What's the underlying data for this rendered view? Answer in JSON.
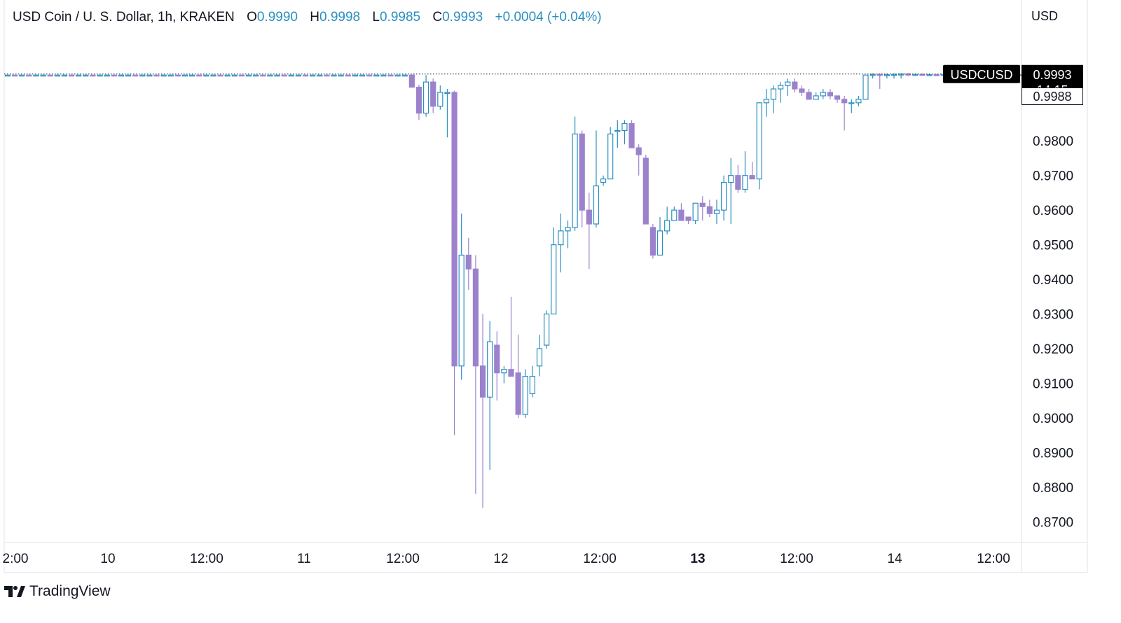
{
  "header": {
    "symbol_title": "USD Coin / U. S. Dollar, 1h, KRAKEN",
    "open_label": "O",
    "open_value": "0.9990",
    "high_label": "H",
    "high_value": "0.9998",
    "low_label": "L",
    "low_value": "0.9985",
    "close_label": "C",
    "close_value": "0.9993",
    "change": "+0.0004 (+0.04%)"
  },
  "price_axis": {
    "currency": "USD",
    "symbol_badge": "USDCUSD",
    "last_price": "0.9993",
    "countdown": "14:15",
    "marker_price": "0.9988"
  },
  "brand": {
    "name": "TradingView"
  },
  "colors": {
    "up": "#2a8fc0",
    "down": "#9c82cc",
    "axis_text": "#131722",
    "grid": "#f3f3f3"
  },
  "chart_data": {
    "type": "candlestick",
    "interval": "1h",
    "ylim": [
      0.863,
      1.013
    ],
    "y_ticks": [
      "0.9800",
      "0.9700",
      "0.9600",
      "0.9500",
      "0.9400",
      "0.9300",
      "0.9200",
      "0.9100",
      "0.9000",
      "0.8900",
      "0.8800",
      "0.8700"
    ],
    "x_ticks": [
      {
        "label": "2:00",
        "bold": false
      },
      {
        "label": "10",
        "bold": false
      },
      {
        "label": "12:00",
        "bold": false
      },
      {
        "label": "11",
        "bold": false
      },
      {
        "label": "12:00",
        "bold": false
      },
      {
        "label": "12",
        "bold": false
      },
      {
        "label": "12:00",
        "bold": false
      },
      {
        "label": "13",
        "bold": true
      },
      {
        "label": "12:00",
        "bold": false
      },
      {
        "label": "14",
        "bold": false
      },
      {
        "label": "12:00",
        "bold": false
      }
    ],
    "candles": [
      [
        0.9989,
        0.999,
        0.9988,
        0.999
      ],
      [
        0.999,
        0.9991,
        0.9988,
        0.9989
      ],
      [
        0.9989,
        0.999,
        0.9988,
        0.999
      ],
      [
        0.999,
        0.9991,
        0.9989,
        0.9989
      ],
      [
        0.9989,
        0.999,
        0.9988,
        0.999
      ],
      [
        0.999,
        0.9991,
        0.9989,
        0.999
      ],
      [
        0.999,
        0.9991,
        0.9989,
        0.9989
      ],
      [
        0.9989,
        0.999,
        0.9988,
        0.999
      ],
      [
        0.999,
        0.9991,
        0.9989,
        0.999
      ],
      [
        0.999,
        0.9991,
        0.9989,
        0.9989
      ],
      [
        0.9989,
        0.999,
        0.9988,
        0.999
      ],
      [
        0.999,
        0.9991,
        0.9989,
        0.999
      ],
      [
        0.999,
        0.9991,
        0.9989,
        0.9989
      ],
      [
        0.9989,
        0.999,
        0.9988,
        0.999
      ],
      [
        0.999,
        0.9991,
        0.9989,
        0.999
      ],
      [
        0.999,
        0.9991,
        0.9989,
        0.9989
      ],
      [
        0.9989,
        0.999,
        0.9988,
        0.999
      ],
      [
        0.999,
        0.9991,
        0.9989,
        0.999
      ],
      [
        0.999,
        0.9991,
        0.9989,
        0.9989
      ],
      [
        0.9989,
        0.999,
        0.9988,
        0.999
      ],
      [
        0.999,
        0.9991,
        0.9989,
        0.999
      ],
      [
        0.999,
        0.9991,
        0.9989,
        0.9989
      ],
      [
        0.9989,
        0.999,
        0.9988,
        0.999
      ],
      [
        0.999,
        0.9991,
        0.9989,
        0.999
      ],
      [
        0.999,
        0.9991,
        0.9989,
        0.9989
      ],
      [
        0.9989,
        0.999,
        0.9988,
        0.999
      ],
      [
        0.999,
        0.9991,
        0.9989,
        0.999
      ],
      [
        0.999,
        0.9991,
        0.9989,
        0.9989
      ],
      [
        0.9989,
        0.999,
        0.9988,
        0.999
      ],
      [
        0.999,
        0.9991,
        0.9989,
        0.999
      ],
      [
        0.999,
        0.9991,
        0.9989,
        0.9989
      ],
      [
        0.9989,
        0.999,
        0.9988,
        0.999
      ],
      [
        0.999,
        0.9991,
        0.9989,
        0.999
      ],
      [
        0.999,
        0.9991,
        0.9989,
        0.9989
      ],
      [
        0.9989,
        0.999,
        0.9988,
        0.999
      ],
      [
        0.999,
        0.9991,
        0.9989,
        0.999
      ],
      [
        0.999,
        0.9991,
        0.9989,
        0.9989
      ],
      [
        0.9989,
        0.999,
        0.9988,
        0.999
      ],
      [
        0.999,
        0.9991,
        0.9989,
        0.999
      ],
      [
        0.999,
        0.9991,
        0.9989,
        0.9989
      ],
      [
        0.9989,
        0.999,
        0.9988,
        0.999
      ],
      [
        0.999,
        0.9991,
        0.9989,
        0.999
      ],
      [
        0.999,
        0.9991,
        0.9989,
        0.9989
      ],
      [
        0.9989,
        0.999,
        0.9988,
        0.999
      ],
      [
        0.999,
        0.9991,
        0.9989,
        0.999
      ],
      [
        0.999,
        0.9991,
        0.9989,
        0.9989
      ],
      [
        0.9989,
        0.999,
        0.9988,
        0.999
      ],
      [
        0.999,
        0.9991,
        0.9989,
        0.999
      ],
      [
        0.999,
        0.9991,
        0.9989,
        0.9989
      ],
      [
        0.9989,
        0.999,
        0.9988,
        0.999
      ],
      [
        0.999,
        0.9991,
        0.9989,
        0.999
      ],
      [
        0.999,
        0.9991,
        0.9989,
        0.9989
      ],
      [
        0.9989,
        0.999,
        0.9988,
        0.999
      ],
      [
        0.999,
        0.9991,
        0.9989,
        0.999
      ],
      [
        0.999,
        0.9991,
        0.9989,
        0.9989
      ],
      [
        0.9989,
        0.999,
        0.9988,
        0.999
      ],
      [
        0.999,
        0.9991,
        0.9989,
        0.999
      ],
      [
        0.999,
        0.9992,
        0.9955,
        0.9955
      ],
      [
        0.9955,
        0.9962,
        0.986,
        0.988
      ],
      [
        0.988,
        0.999,
        0.987,
        0.997
      ],
      [
        0.997,
        0.998,
        0.988,
        0.99
      ],
      [
        0.99,
        0.996,
        0.989,
        0.994
      ],
      [
        0.994,
        0.995,
        0.981,
        0.994
      ],
      [
        0.994,
        0.9945,
        0.895,
        0.915
      ],
      [
        0.915,
        0.959,
        0.911,
        0.947
      ],
      [
        0.947,
        0.952,
        0.937,
        0.943
      ],
      [
        0.943,
        0.947,
        0.878,
        0.915
      ],
      [
        0.915,
        0.93,
        0.874,
        0.906
      ],
      [
        0.906,
        0.928,
        0.885,
        0.922
      ],
      [
        0.921,
        0.925,
        0.905,
        0.913
      ],
      [
        0.913,
        0.915,
        0.91,
        0.914
      ],
      [
        0.914,
        0.935,
        0.912,
        0.912
      ],
      [
        0.913,
        0.924,
        0.9,
        0.901
      ],
      [
        0.901,
        0.914,
        0.9,
        0.912
      ],
      [
        0.907,
        0.915,
        0.906,
        0.912
      ],
      [
        0.915,
        0.924,
        0.912,
        0.92
      ],
      [
        0.921,
        0.931,
        0.92,
        0.93
      ],
      [
        0.93,
        0.955,
        0.93,
        0.95
      ],
      [
        0.95,
        0.959,
        0.942,
        0.954
      ],
      [
        0.954,
        0.957,
        0.949,
        0.955
      ],
      [
        0.955,
        0.987,
        0.954,
        0.982
      ],
      [
        0.982,
        0.983,
        0.955,
        0.96
      ],
      [
        0.96,
        0.965,
        0.943,
        0.956
      ],
      [
        0.956,
        0.983,
        0.955,
        0.967
      ],
      [
        0.968,
        0.97,
        0.967,
        0.969
      ],
      [
        0.969,
        0.984,
        0.969,
        0.982
      ],
      [
        0.983,
        0.986,
        0.978,
        0.983
      ],
      [
        0.983,
        0.986,
        0.979,
        0.985
      ],
      [
        0.985,
        0.986,
        0.978,
        0.978
      ],
      [
        0.978,
        0.979,
        0.97,
        0.976
      ],
      [
        0.975,
        0.976,
        0.956,
        0.956
      ],
      [
        0.955,
        0.956,
        0.946,
        0.947
      ],
      [
        0.947,
        0.958,
        0.947,
        0.954
      ],
      [
        0.954,
        0.961,
        0.953,
        0.957
      ],
      [
        0.957,
        0.961,
        0.957,
        0.96
      ],
      [
        0.96,
        0.962,
        0.957,
        0.957
      ],
      [
        0.958,
        0.958,
        0.956,
        0.957
      ],
      [
        0.957,
        0.962,
        0.956,
        0.962
      ],
      [
        0.962,
        0.964,
        0.957,
        0.961
      ],
      [
        0.961,
        0.963,
        0.958,
        0.959
      ],
      [
        0.959,
        0.963,
        0.956,
        0.96
      ],
      [
        0.96,
        0.97,
        0.957,
        0.968
      ],
      [
        0.968,
        0.975,
        0.956,
        0.97
      ],
      [
        0.97,
        0.973,
        0.965,
        0.966
      ],
      [
        0.966,
        0.977,
        0.965,
        0.97
      ],
      [
        0.97,
        0.974,
        0.969,
        0.969
      ],
      [
        0.969,
        0.991,
        0.966,
        0.991
      ],
      [
        0.991,
        0.995,
        0.987,
        0.992
      ],
      [
        0.992,
        0.996,
        0.988,
        0.995
      ],
      [
        0.995,
        0.997,
        0.991,
        0.996
      ],
      [
        0.996,
        0.998,
        0.993,
        0.997
      ],
      [
        0.997,
        0.998,
        0.994,
        0.995
      ],
      [
        0.995,
        0.996,
        0.993,
        0.994
      ],
      [
        0.994,
        0.995,
        0.992,
        0.992
      ],
      [
        0.992,
        0.994,
        0.992,
        0.993
      ],
      [
        0.993,
        0.995,
        0.992,
        0.994
      ],
      [
        0.994,
        0.995,
        0.992,
        0.993
      ],
      [
        0.993,
        0.993,
        0.991,
        0.992
      ],
      [
        0.992,
        0.993,
        0.983,
        0.991
      ],
      [
        0.991,
        0.992,
        0.988,
        0.991
      ],
      [
        0.991,
        0.993,
        0.99,
        0.992
      ],
      [
        0.992,
        0.999,
        0.992,
        0.999
      ],
      [
        0.999,
        0.9995,
        0.998,
        0.9992
      ],
      [
        0.9992,
        0.9995,
        0.995,
        0.999
      ],
      [
        0.999,
        0.9994,
        0.998,
        0.9991
      ],
      [
        0.9991,
        0.9995,
        0.998,
        0.9992
      ],
      [
        0.9992,
        0.9995,
        0.998,
        0.9993
      ],
      [
        0.9993,
        0.9996,
        0.9987,
        0.9991
      ],
      [
        0.9991,
        0.9994,
        0.9988,
        0.9992
      ],
      [
        0.9992,
        0.9994,
        0.9988,
        0.999
      ],
      [
        0.999,
        0.9993,
        0.9988,
        0.9991
      ],
      [
        0.9991,
        0.9993,
        0.9988,
        0.999
      ],
      [
        0.999,
        0.9993,
        0.9987,
        0.9992
      ],
      [
        0.9992,
        0.9994,
        0.9988,
        0.999
      ],
      [
        0.999,
        0.9993,
        0.9988,
        0.9991
      ],
      [
        0.9991,
        0.9993,
        0.9988,
        0.999
      ],
      [
        0.999,
        0.9994,
        0.9988,
        0.9992
      ],
      [
        0.9992,
        0.9994,
        0.9988,
        0.999
      ],
      [
        0.999,
        0.9993,
        0.9988,
        0.9991
      ],
      [
        0.9991,
        0.9993,
        0.9988,
        0.999
      ],
      [
        0.999,
        0.9993,
        0.9987,
        0.9992
      ],
      [
        0.9992,
        0.9994,
        0.9988,
        0.999
      ],
      [
        0.999,
        0.9993,
        0.9988,
        0.9991
      ],
      [
        0.9991,
        0.9993,
        0.9988,
        0.999
      ],
      [
        0.999,
        0.9994,
        0.9988,
        0.9992
      ],
      [
        0.9992,
        0.9994,
        0.9988,
        0.999
      ],
      [
        0.999,
        0.9993,
        0.9988,
        0.9991
      ],
      [
        0.9991,
        0.9993,
        0.9988,
        0.999
      ],
      [
        0.999,
        0.9998,
        0.9985,
        0.9993
      ]
    ]
  }
}
